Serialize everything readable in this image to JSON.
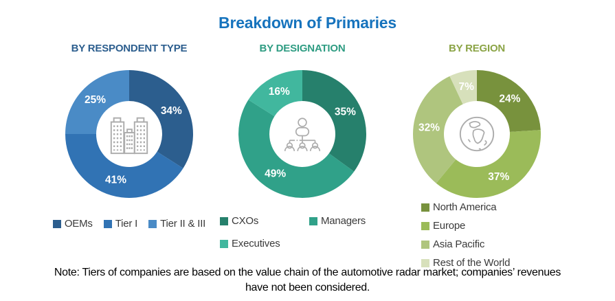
{
  "title": "Breakdown of Primaries",
  "title_color": "#1673BD",
  "note": {
    "line1": "Note: Tiers of companies are based on the value chain of the automotive radar market; companies’ revenues",
    "line2": "have not been considered."
  },
  "chart_data": [
    {
      "type": "pie",
      "variant": "donut",
      "title": "BY RESPONDENT TYPE",
      "title_color": "#2C5E8E",
      "center_icon": "buildings-icon",
      "categories": [
        "OEMs",
        "Tier I",
        "Tier II & III"
      ],
      "values": [
        34,
        41,
        25
      ],
      "value_labels": [
        "34%",
        "41%",
        "25%"
      ],
      "colors": [
        "#2C5E8E",
        "#3173B4",
        "#4A8BC6"
      ],
      "start_angle_deg": 0,
      "legend_position": "bottom-row"
    },
    {
      "type": "pie",
      "variant": "donut",
      "title": "BY DESIGNATION",
      "title_color": "#2E9C82",
      "center_icon": "org-chart-icon",
      "categories": [
        "CXOs",
        "Managers",
        "Executives"
      ],
      "values": [
        35,
        49,
        16
      ],
      "value_labels": [
        "35%",
        "49%",
        "16%"
      ],
      "colors": [
        "#26806C",
        "#30A189",
        "#41B79E"
      ],
      "start_angle_deg": 0,
      "legend_position": "bottom-grid"
    },
    {
      "type": "pie",
      "variant": "donut",
      "title": "BY REGION",
      "title_color": "#8BA446",
      "center_icon": "globe-icon",
      "categories": [
        "North America",
        "Europe",
        "Asia Pacific",
        "Rest of the World"
      ],
      "values": [
        24,
        37,
        32,
        7
      ],
      "value_labels": [
        "24%",
        "37%",
        "32%",
        "7%"
      ],
      "colors": [
        "#78923D",
        "#9BBB59",
        "#AFC57E",
        "#D7E0BB"
      ],
      "start_angle_deg": 0,
      "legend_position": "bottom-column"
    }
  ]
}
